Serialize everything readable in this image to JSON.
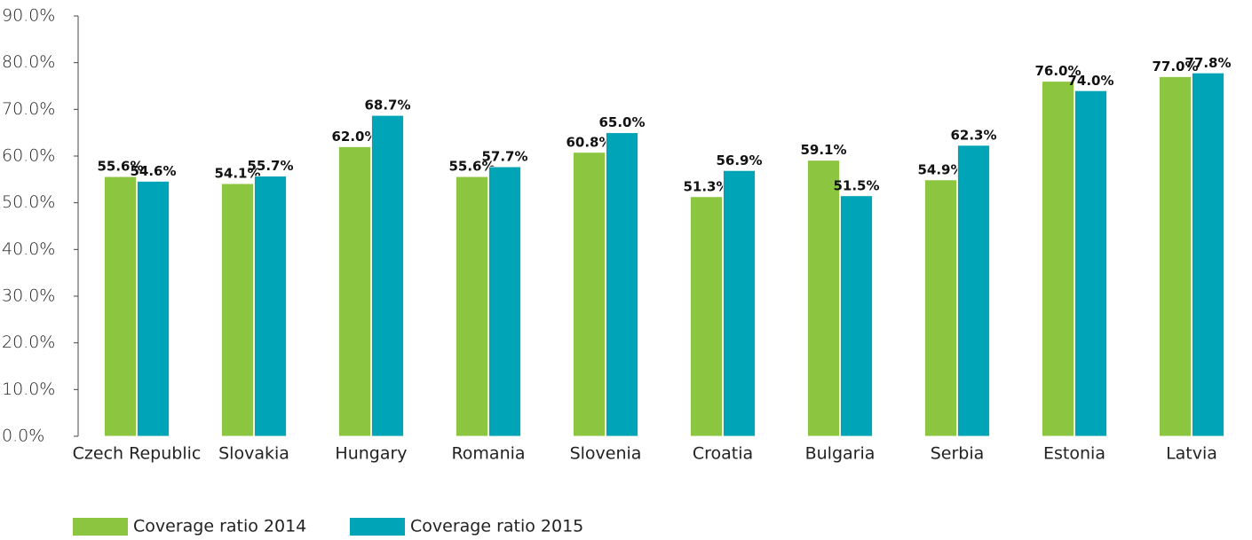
{
  "chart_data": {
    "type": "bar",
    "categories": [
      "Czech Republic",
      "Slovakia",
      "Hungary",
      "Romania",
      "Slovenia",
      "Croatia",
      "Bulgaria",
      "Serbia",
      "Estonia",
      "Latvia"
    ],
    "series": [
      {
        "name": "Coverage ratio 2014",
        "color": "#8cc53f",
        "values": [
          55.6,
          54.1,
          62.0,
          55.6,
          60.8,
          51.3,
          59.1,
          54.9,
          76.0,
          77.0
        ],
        "value_labels": [
          "55.6%",
          "54.1%",
          "62.0%",
          "55.6%",
          "60.8%",
          "51.3%",
          "59.1%",
          "54.9%",
          "76.0%",
          "77.0%"
        ]
      },
      {
        "name": "Coverage ratio 2015",
        "color": "#00a4b7",
        "values": [
          54.6,
          55.7,
          68.7,
          57.7,
          65.0,
          56.9,
          51.5,
          62.3,
          74.0,
          77.8
        ],
        "value_labels": [
          "54.6%",
          "55.7%",
          "68.7%",
          "57.7%",
          "65.0%",
          "56.9%",
          "51.5%",
          "62.3%",
          "74.0%",
          "77.8%"
        ]
      }
    ],
    "ylim": [
      0,
      90
    ],
    "yticks": [
      {
        "value": 0,
        "label": "0.0%"
      },
      {
        "value": 10,
        "label": "10.0%"
      },
      {
        "value": 20,
        "label": "20.0%"
      },
      {
        "value": 30,
        "label": "30.0%"
      },
      {
        "value": 40,
        "label": "40.0%"
      },
      {
        "value": 50,
        "label": "50.0%"
      },
      {
        "value": 60,
        "label": "60.0%"
      },
      {
        "value": 70,
        "label": "70.0%"
      },
      {
        "value": 80,
        "label": "80.0%"
      },
      {
        "value": 90,
        "label": "90.0%"
      }
    ],
    "legend": "bottom-left"
  }
}
